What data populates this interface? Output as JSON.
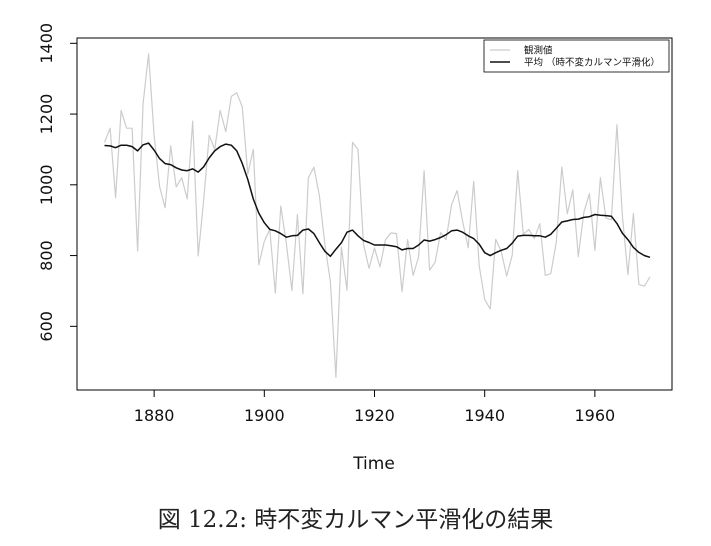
{
  "caption": "図 12.2: 時不変カルマン平滑化の結果",
  "chart_data": {
    "type": "line",
    "title": "",
    "xlabel": "Time",
    "ylabel": "",
    "xlim": [
      1866,
      1974
    ],
    "ylim": [
      420,
      1415
    ],
    "xticks": [
      1880,
      1900,
      1920,
      1940,
      1960
    ],
    "yticks": [
      600,
      800,
      1000,
      1200,
      1400
    ],
    "legend_position": "top-right",
    "x": [
      1871,
      1872,
      1873,
      1874,
      1875,
      1876,
      1877,
      1878,
      1879,
      1880,
      1881,
      1882,
      1883,
      1884,
      1885,
      1886,
      1887,
      1888,
      1889,
      1890,
      1891,
      1892,
      1893,
      1894,
      1895,
      1896,
      1897,
      1898,
      1899,
      1900,
      1901,
      1902,
      1903,
      1904,
      1905,
      1906,
      1907,
      1908,
      1909,
      1910,
      1911,
      1912,
      1913,
      1914,
      1915,
      1916,
      1917,
      1918,
      1919,
      1920,
      1921,
      1922,
      1923,
      1924,
      1925,
      1926,
      1927,
      1928,
      1929,
      1930,
      1931,
      1932,
      1933,
      1934,
      1935,
      1936,
      1937,
      1938,
      1939,
      1940,
      1941,
      1942,
      1943,
      1944,
      1945,
      1946,
      1947,
      1948,
      1949,
      1950,
      1951,
      1952,
      1953,
      1954,
      1955,
      1956,
      1957,
      1958,
      1959,
      1960,
      1961,
      1962,
      1963,
      1964,
      1965,
      1966,
      1967,
      1968,
      1969,
      1970
    ],
    "series": [
      {
        "name": "観測値",
        "color": "#cccccc",
        "values": [
          1120,
          1160,
          963,
          1210,
          1160,
          1160,
          813,
          1230,
          1370,
          1140,
          995,
          935,
          1110,
          994,
          1020,
          960,
          1180,
          799,
          958,
          1140,
          1100,
          1210,
          1150,
          1250,
          1260,
          1220,
          1030,
          1100,
          774,
          840,
          874,
          694,
          940,
          833,
          701,
          916,
          692,
          1020,
          1050,
          969,
          831,
          726,
          456,
          824,
          702,
          1120,
          1100,
          832,
          764,
          821,
          768,
          845,
          864,
          862,
          698,
          845,
          744,
          796,
          1040,
          759,
          781,
          865,
          845,
          944,
          984,
          897,
          822,
          1010,
          771,
          676,
          649,
          846,
          812,
          742,
          801,
          1040,
          860,
          874,
          848,
          890,
          744,
          749,
          838,
          1050,
          918,
          986,
          797,
          923,
          975,
          815,
          1020,
          906,
          901,
          1170,
          912,
          746,
          919,
          718,
          714,
          740
        ]
      },
      {
        "name": "平均 （時不変カルマン平滑化）",
        "color": "#111111",
        "values": [
          1111,
          1110,
          1105,
          1112,
          1112,
          1108,
          1096,
          1113,
          1118,
          1098,
          1074,
          1060,
          1057,
          1048,
          1042,
          1040,
          1045,
          1036,
          1051,
          1076,
          1096,
          1108,
          1115,
          1112,
          1096,
          1060,
          1015,
          960,
          920,
          893,
          874,
          870,
          862,
          852,
          856,
          857,
          872,
          875,
          862,
          836,
          812,
          798,
          818,
          836,
          866,
          872,
          856,
          843,
          837,
          830,
          830,
          830,
          828,
          825,
          816,
          820,
          820,
          830,
          844,
          841,
          845,
          851,
          859,
          870,
          872,
          866,
          856,
          848,
          832,
          808,
          800,
          808,
          815,
          820,
          835,
          855,
          857,
          857,
          856,
          856,
          852,
          860,
          877,
          895,
          898,
          902,
          903,
          908,
          910,
          916,
          914,
          913,
          911,
          891,
          863,
          845,
          823,
          809,
          800,
          795
        ]
      }
    ]
  }
}
